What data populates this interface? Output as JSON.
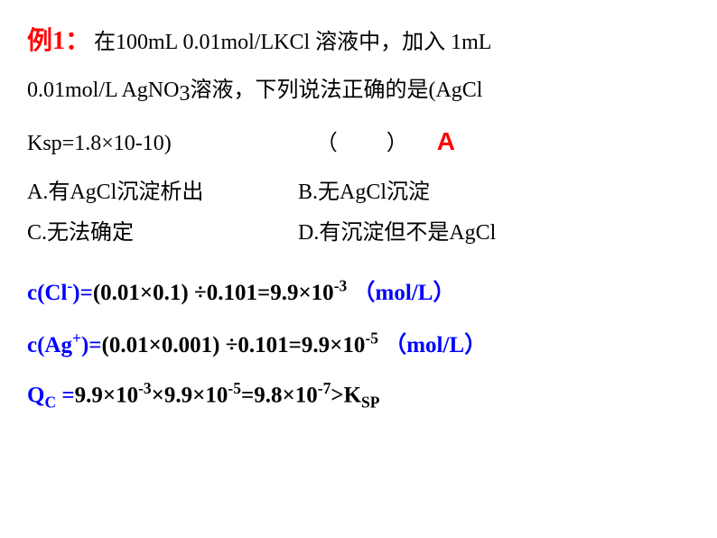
{
  "example_label": "例1：",
  "q_part1": "在100mL 0.01mol/LKCl 溶液中，加入 1mL",
  "q_part2a": "0.01mol/L  AgNO",
  "q_sub3": "3",
  "q_part2b": "溶液，下列说法正确的是(AgCl",
  "q_part3a": "K",
  "q_sub_sp": "sp",
  "q_part3b": "=1.8×10",
  "q_sup_neg10": "-10",
  "q_part3c": ")",
  "paren_text": "（　　）",
  "answer": "A",
  "opt_a": "A.有AgCl沉淀析出",
  "opt_b": "B.无AgCl沉淀",
  "opt_c": "C.无法确定",
  "opt_d": "D.有沉淀但不是AgCl",
  "calc1_blue_a": "c(Cl",
  "calc1_blue_sup": "-",
  "calc1_blue_b": ")=",
  "calc1_black_a": "(0.01×0.1) ÷0.101=9.9×10",
  "calc1_black_sup": "-3",
  "calc1_blue_unit": " （mol/L）",
  "calc2_blue_a": "c(Ag",
  "calc2_blue_sup": "+",
  "calc2_blue_b": ")=",
  "calc2_black_a": "(0.01×0.001) ÷0.101=9.9×10",
  "calc2_black_sup": "-5",
  "calc2_blue_unit": " （mol/L）",
  "calc3_blue_a": "Q",
  "calc3_blue_sub": "C",
  "calc3_blue_b": " =",
  "calc3_black_a": "9.9×10",
  "calc3_black_sup1": "-3",
  "calc3_black_b": "×9.9×10",
  "calc3_black_sup2": "-5",
  "calc3_black_c": "=9.8×10",
  "calc3_black_sup3": "-7",
  "calc3_black_d": ">K",
  "calc3_black_sub": "SP"
}
